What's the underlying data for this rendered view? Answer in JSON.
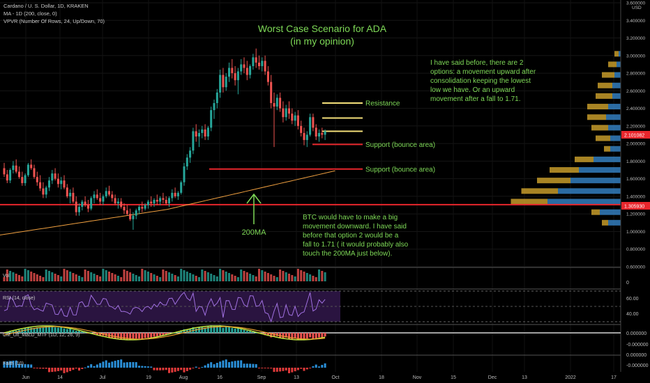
{
  "header": {
    "symbol_line": "Cardano / U. S. Dollar, 1D, KRAKEN",
    "ma_line": "MA - 1D (200, close, 0)",
    "vpvr_line": "VPVR (Number Of Rows, 24, Up/Down, 70)"
  },
  "chart_data": {
    "type": "candlestick",
    "title": "Worst Case Scenario for ADA",
    "subtitle": "(in my opinion)",
    "price_axis": {
      "min": 0.6,
      "max": 3.6,
      "ticks": [
        "3.600000",
        "3.400000",
        "3.200000",
        "3.000000",
        "2.800000",
        "2.600000",
        "2.400000",
        "2.200000",
        "2.000000",
        "1.800000",
        "1.600000",
        "1.400000",
        "1.200000",
        "1.000000",
        "0.800000",
        "0.600000"
      ],
      "unit_label": "USD",
      "current_price_label": "2.101082",
      "marked_level_label": "1.305930"
    },
    "time_axis": [
      "Jun",
      "14",
      "Jul",
      "19",
      "Aug",
      "16",
      "Sep",
      "13",
      "Oct",
      "18",
      "Nov",
      "15",
      "Dec",
      "13",
      "2022",
      "17"
    ],
    "ohlc": [
      [
        1.72,
        1.78,
        1.62,
        1.65
      ],
      [
        1.65,
        1.7,
        1.55,
        1.58
      ],
      [
        1.58,
        1.72,
        1.55,
        1.7
      ],
      [
        1.7,
        1.8,
        1.66,
        1.75
      ],
      [
        1.75,
        1.82,
        1.66,
        1.68
      ],
      [
        1.68,
        1.74,
        1.6,
        1.62
      ],
      [
        1.62,
        1.68,
        1.52,
        1.55
      ],
      [
        1.55,
        1.66,
        1.52,
        1.64
      ],
      [
        1.64,
        1.78,
        1.62,
        1.76
      ],
      [
        1.76,
        1.82,
        1.7,
        1.72
      ],
      [
        1.72,
        1.76,
        1.6,
        1.62
      ],
      [
        1.62,
        1.68,
        1.52,
        1.56
      ],
      [
        1.56,
        1.64,
        1.46,
        1.49
      ],
      [
        1.49,
        1.56,
        1.38,
        1.42
      ],
      [
        1.42,
        1.52,
        1.38,
        1.5
      ],
      [
        1.5,
        1.62,
        1.46,
        1.58
      ],
      [
        1.58,
        1.7,
        1.54,
        1.66
      ],
      [
        1.66,
        1.72,
        1.58,
        1.6
      ],
      [
        1.6,
        1.66,
        1.5,
        1.54
      ],
      [
        1.54,
        1.62,
        1.48,
        1.58
      ],
      [
        1.58,
        1.64,
        1.48,
        1.5
      ],
      [
        1.5,
        1.54,
        1.38,
        1.4
      ],
      [
        1.4,
        1.48,
        1.32,
        1.44
      ],
      [
        1.44,
        1.5,
        1.32,
        1.34
      ],
      [
        1.34,
        1.4,
        1.18,
        1.22
      ],
      [
        1.22,
        1.32,
        1.18,
        1.28
      ],
      [
        1.28,
        1.36,
        1.24,
        1.34
      ],
      [
        1.34,
        1.4,
        1.28,
        1.3
      ],
      [
        1.3,
        1.36,
        1.22,
        1.26
      ],
      [
        1.26,
        1.4,
        1.24,
        1.38
      ],
      [
        1.38,
        1.46,
        1.32,
        1.42
      ],
      [
        1.42,
        1.48,
        1.36,
        1.38
      ],
      [
        1.38,
        1.44,
        1.3,
        1.34
      ],
      [
        1.34,
        1.42,
        1.3,
        1.4
      ],
      [
        1.4,
        1.5,
        1.38,
        1.46
      ],
      [
        1.46,
        1.52,
        1.4,
        1.42
      ],
      [
        1.42,
        1.46,
        1.34,
        1.38
      ],
      [
        1.38,
        1.42,
        1.3,
        1.32
      ],
      [
        1.32,
        1.38,
        1.26,
        1.34
      ],
      [
        1.34,
        1.38,
        1.26,
        1.28
      ],
      [
        1.28,
        1.32,
        1.2,
        1.24
      ],
      [
        1.24,
        1.3,
        1.18,
        1.2
      ],
      [
        1.2,
        1.26,
        1.12,
        1.14
      ],
      [
        1.14,
        1.22,
        1.02,
        1.18
      ],
      [
        1.18,
        1.26,
        1.14,
        1.24
      ],
      [
        1.24,
        1.3,
        1.2,
        1.28
      ],
      [
        1.28,
        1.34,
        1.22,
        1.26
      ],
      [
        1.26,
        1.32,
        1.24,
        1.3
      ],
      [
        1.3,
        1.36,
        1.26,
        1.34
      ],
      [
        1.34,
        1.4,
        1.28,
        1.32
      ],
      [
        1.32,
        1.38,
        1.28,
        1.36
      ],
      [
        1.36,
        1.42,
        1.3,
        1.34
      ],
      [
        1.34,
        1.4,
        1.3,
        1.38
      ],
      [
        1.38,
        1.44,
        1.32,
        1.36
      ],
      [
        1.36,
        1.4,
        1.3,
        1.32
      ],
      [
        1.32,
        1.4,
        1.28,
        1.38
      ],
      [
        1.38,
        1.48,
        1.34,
        1.44
      ],
      [
        1.44,
        1.5,
        1.38,
        1.4
      ],
      [
        1.4,
        1.46,
        1.36,
        1.44
      ],
      [
        1.44,
        1.58,
        1.42,
        1.56
      ],
      [
        1.56,
        1.78,
        1.52,
        1.74
      ],
      [
        1.74,
        1.88,
        1.7,
        1.84
      ],
      [
        1.84,
        1.96,
        1.78,
        1.92
      ],
      [
        1.92,
        2.18,
        1.88,
        2.14
      ],
      [
        2.14,
        2.22,
        2.02,
        2.08
      ],
      [
        2.08,
        2.16,
        1.96,
        2.12
      ],
      [
        2.12,
        2.2,
        2.06,
        2.16
      ],
      [
        2.16,
        2.22,
        2.04,
        2.08
      ],
      [
        2.08,
        2.2,
        2.04,
        2.18
      ],
      [
        2.18,
        2.42,
        2.14,
        2.38
      ],
      [
        2.38,
        2.5,
        2.28,
        2.46
      ],
      [
        2.46,
        2.62,
        2.4,
        2.58
      ],
      [
        2.58,
        2.84,
        2.52,
        2.78
      ],
      [
        2.78,
        2.86,
        2.58,
        2.64
      ],
      [
        2.64,
        2.8,
        2.6,
        2.76
      ],
      [
        2.76,
        2.92,
        2.7,
        2.86
      ],
      [
        2.86,
        2.96,
        2.74,
        2.8
      ],
      [
        2.8,
        2.88,
        2.66,
        2.72
      ],
      [
        2.72,
        2.86,
        2.56,
        2.82
      ],
      [
        2.82,
        2.96,
        2.78,
        2.9
      ],
      [
        2.9,
        2.98,
        2.8,
        2.86
      ],
      [
        2.86,
        2.94,
        2.72,
        2.78
      ],
      [
        2.78,
        2.9,
        2.74,
        2.88
      ],
      [
        2.88,
        3.02,
        2.84,
        2.98
      ],
      [
        2.98,
        3.08,
        2.86,
        2.92
      ],
      [
        2.92,
        3.0,
        2.84,
        2.88
      ],
      [
        2.88,
        2.98,
        2.82,
        2.94
      ],
      [
        2.94,
        3.0,
        2.78,
        2.82
      ],
      [
        2.82,
        2.88,
        2.66,
        2.7
      ],
      [
        2.7,
        2.78,
        2.4,
        2.46
      ],
      [
        2.46,
        2.58,
        1.96,
        2.42
      ],
      [
        2.42,
        2.56,
        2.38,
        2.52
      ],
      [
        2.52,
        2.58,
        2.36,
        2.4
      ],
      [
        2.4,
        2.48,
        2.24,
        2.3
      ],
      [
        2.3,
        2.44,
        2.26,
        2.4
      ],
      [
        2.4,
        2.48,
        2.28,
        2.34
      ],
      [
        2.34,
        2.4,
        2.22,
        2.26
      ],
      [
        2.26,
        2.36,
        2.2,
        2.32
      ],
      [
        2.32,
        2.38,
        2.16,
        2.2
      ],
      [
        2.2,
        2.26,
        2.08,
        2.12
      ],
      [
        2.12,
        2.18,
        1.98,
        2.04
      ],
      [
        2.04,
        2.14,
        1.96,
        2.1
      ],
      [
        2.1,
        2.34,
        2.08,
        2.3
      ],
      [
        2.3,
        2.34,
        2.14,
        2.18
      ],
      [
        2.18,
        2.22,
        2.04,
        2.08
      ],
      [
        2.08,
        2.16,
        2.02,
        2.12
      ],
      [
        2.12,
        2.18,
        2.06,
        2.1
      ],
      [
        2.1,
        2.16,
        2.04,
        2.14
      ]
    ],
    "ma200": {
      "start": 0.96,
      "end": 1.69
    },
    "horizontal_lines": [
      {
        "label": "Resistance",
        "value": 2.46,
        "color": "#f5e17a"
      },
      {
        "label": "",
        "value": 2.29,
        "color": "#f5e17a"
      },
      {
        "label": "",
        "value": 2.14,
        "color": "#f5e17a"
      },
      {
        "label": "Support (bounce area)",
        "value": 1.99,
        "color": "#e8262c"
      },
      {
        "label": "Support (bounce area)",
        "value": 1.71,
        "color": "#e8262c"
      },
      {
        "label": "",
        "value": 1.30593,
        "color": "#e8262c"
      }
    ],
    "annotations": {
      "ma_label": "200MA",
      "note_right_1": "I have said before, there are 2",
      "note_right_2": "options: a movement upward after",
      "note_right_3": "consolidation keeping the lowest",
      "note_right_4": "low we have. Or an upward",
      "note_right_5": "movement after a fall to 1.71.",
      "note_bottom_1": "BTC would have to make a big",
      "note_bottom_2": "movement downward. I have said",
      "note_bottom_3": "before that option 2 would be a",
      "note_bottom_4": "fall to 1.71 ( it would probably also",
      "note_bottom_5": "touch the 200MA just below)."
    },
    "volume_profile": [
      {
        "price": 1.1,
        "up": 0.12,
        "down": 0.06
      },
      {
        "price": 1.22,
        "up": 0.2,
        "down": 0.08
      },
      {
        "price": 1.34,
        "up": 0.7,
        "down": 0.35
      },
      {
        "price": 1.46,
        "up": 0.6,
        "down": 0.35
      },
      {
        "price": 1.58,
        "up": 0.48,
        "down": 0.32
      },
      {
        "price": 1.7,
        "up": 0.4,
        "down": 0.28
      },
      {
        "price": 1.82,
        "up": 0.26,
        "down": 0.18
      },
      {
        "price": 1.94,
        "up": 0.1,
        "down": 0.06
      },
      {
        "price": 2.06,
        "up": 0.1,
        "down": 0.14
      },
      {
        "price": 2.18,
        "up": 0.12,
        "down": 0.16
      },
      {
        "price": 2.3,
        "up": 0.14,
        "down": 0.18
      },
      {
        "price": 2.42,
        "up": 0.12,
        "down": 0.2
      },
      {
        "price": 2.54,
        "up": 0.08,
        "down": 0.16
      },
      {
        "price": 2.66,
        "up": 0.08,
        "down": 0.14
      },
      {
        "price": 2.78,
        "up": 0.06,
        "down": 0.12
      },
      {
        "price": 2.9,
        "up": 0.04,
        "down": 0.08
      },
      {
        "price": 3.02,
        "up": 0.02,
        "down": 0.04
      }
    ]
  },
  "panels": {
    "volume": {
      "label": "Vol",
      "axis_tick": "0"
    },
    "rsi": {
      "label": "RSI (14, close)",
      "ticks": [
        "60.00",
        "40.00"
      ]
    },
    "macd": {
      "label": "CM_Ult_MacD_MTF (1D, 12, 26, 9)",
      "ticks": [
        "0.000000",
        "-0.000000"
      ]
    },
    "faith": {
      "label": "Faith (10)",
      "ticks": [
        "0.000000",
        "-0.000000"
      ]
    }
  },
  "colors": {
    "up": "#26a69a",
    "down": "#ef5350",
    "ma": "#f0a040",
    "text": "#cccccc",
    "annotation": "#7ed957",
    "vp_up": "#3a8fd8",
    "vp_down": "#e0b030"
  }
}
